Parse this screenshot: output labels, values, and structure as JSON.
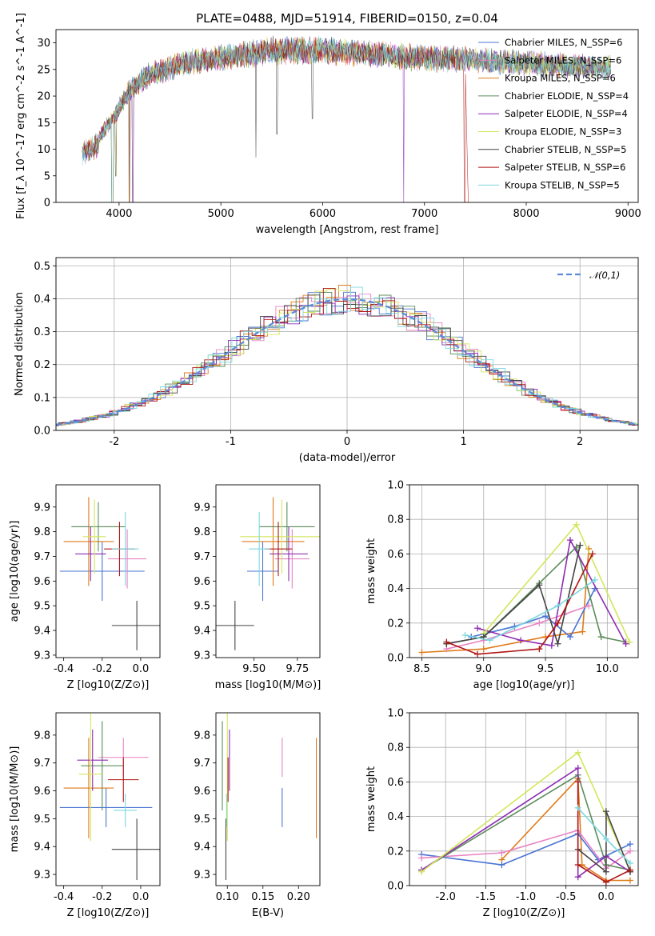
{
  "page": {
    "title": "PLATE=0488, MJD=51914, FIBERID=0150, z=0.04"
  },
  "chart_data": [
    {
      "type": "line",
      "panel": "spectrum",
      "xlabel": "wavelength [Angstrom, rest frame]",
      "ylabel": "Flux [f_λ 10^-17 erg cm^-2 s^-1 A^-1]",
      "xlim": [
        3380,
        9100
      ],
      "ylim": [
        0,
        32.5
      ],
      "xticks": [
        4000,
        5000,
        6000,
        7000,
        8000,
        9000
      ],
      "yticks": [
        0,
        5,
        10,
        15,
        20,
        25,
        30
      ],
      "legend_position": "upper-right",
      "continuum_trend": {
        "x": [
          3640,
          3800,
          3950,
          4100,
          4300,
          4600,
          5000,
          5500,
          6000,
          6500,
          7000,
          7500,
          8000,
          8500,
          8830
        ],
        "y": [
          11,
          12,
          16,
          21,
          24,
          26,
          27.2,
          28.5,
          28.6,
          27.9,
          27.2,
          26.8,
          26.2,
          25.6,
          25.2
        ]
      },
      "series": [
        {
          "name": "Chabrier MILES, N_SSP=6",
          "color": "#4a74d3"
        },
        {
          "name": "Salpeter MILES, N_SSP=6",
          "color": "#e884c4"
        },
        {
          "name": "Kroupa MILES, N_SSP=6",
          "color": "#e07b19"
        },
        {
          "name": "Chabrier ELODIE, N_SSP=4",
          "color": "#5b8c5a"
        },
        {
          "name": "Salpeter ELODIE, N_SSP=4",
          "color": "#8e2cb3"
        },
        {
          "name": "Kroupa ELODIE, N_SSP=3",
          "color": "#d4e65c"
        },
        {
          "name": "Chabrier STELIB, N_SSP=5",
          "color": "#444444"
        },
        {
          "name": "Salpeter STELIB, N_SSP=6",
          "color": "#b01515"
        },
        {
          "name": "Kroupa STELIB, N_SSP=5",
          "color": "#7dd8df"
        }
      ]
    },
    {
      "type": "line",
      "panel": "residual-histogram",
      "xlabel": "(data-model)/error",
      "ylabel": "Normed distribution",
      "xlim": [
        -2.5,
        2.5
      ],
      "ylim": [
        0,
        0.525
      ],
      "xticks": [
        -2,
        -1,
        0,
        1,
        2
      ],
      "yticks": [
        0.0,
        0.1,
        0.2,
        0.3,
        0.4,
        0.5
      ],
      "grid": true,
      "legend_position": "upper-right",
      "reference": {
        "name": "𝒩(0,1)",
        "color": "#5b8bdb",
        "dashed": true
      }
    },
    {
      "type": "scatter",
      "panel": "Z-vs-age",
      "xlabel": "Z [log10(Z/Z⊙)]",
      "ylabel": "age [log10(age/yr)]",
      "xlim": [
        -0.44,
        0.1
      ],
      "ylim": [
        9.29,
        9.99
      ],
      "xticks": [
        -0.4,
        -0.2,
        0.0
      ],
      "yticks": [
        9.3,
        9.4,
        9.5,
        9.6,
        9.7,
        9.8,
        9.9
      ],
      "points": [
        {
          "color": "#4a74d3",
          "x": -0.2,
          "xerr": 0.22,
          "y": 9.64,
          "yerr": 0.12
        },
        {
          "color": "#e884c4",
          "x": -0.07,
          "xerr": 0.1,
          "y": 9.69,
          "yerr": 0.12
        },
        {
          "color": "#e07b19",
          "x": -0.27,
          "xerr": 0.13,
          "y": 9.76,
          "yerr": 0.18
        },
        {
          "color": "#5b8c5a",
          "x": -0.22,
          "xerr": 0.14,
          "y": 9.82,
          "yerr": 0.1
        },
        {
          "color": "#8e2cb3",
          "x": -0.26,
          "xerr": 0.08,
          "y": 9.71,
          "yerr": 0.11
        },
        {
          "color": "#d4e65c",
          "x": -0.24,
          "xerr": 0.06,
          "y": 9.78,
          "yerr": 0.15
        },
        {
          "color": "#444444",
          "x": -0.02,
          "xerr": 0.13,
          "y": 9.42,
          "yerr": 0.1
        },
        {
          "color": "#b01515",
          "x": -0.11,
          "xerr": 0.08,
          "y": 9.73,
          "yerr": 0.11
        },
        {
          "color": "#7dd8df",
          "x": -0.08,
          "xerr": 0.07,
          "y": 9.73,
          "yerr": 0.15
        }
      ]
    },
    {
      "type": "scatter",
      "panel": "mass-vs-age",
      "xlabel": "mass [log10(M/M⊙)]",
      "ylabel": "",
      "xlim": [
        9.28,
        9.88
      ],
      "ylim": [
        9.29,
        9.99
      ],
      "xticks": [
        9.5,
        9.75
      ],
      "yticks": [
        9.3,
        9.4,
        9.5,
        9.6,
        9.7,
        9.8,
        9.9
      ],
      "points": [
        {
          "color": "#4a74d3",
          "x": 9.55,
          "xerr": 0.09,
          "y": 9.64,
          "yerr": 0.12
        },
        {
          "color": "#e884c4",
          "x": 9.72,
          "xerr": 0.1,
          "y": 9.69,
          "yerr": 0.12
        },
        {
          "color": "#e07b19",
          "x": 9.61,
          "xerr": 0.18,
          "y": 9.76,
          "yerr": 0.18
        },
        {
          "color": "#5b8c5a",
          "x": 9.69,
          "xerr": 0.16,
          "y": 9.82,
          "yerr": 0.1
        },
        {
          "color": "#8e2cb3",
          "x": 9.7,
          "xerr": 0.11,
          "y": 9.71,
          "yerr": 0.11
        },
        {
          "color": "#d4e65c",
          "x": 9.66,
          "xerr": 0.24,
          "y": 9.78,
          "yerr": 0.15
        },
        {
          "color": "#444444",
          "x": 9.39,
          "xerr": 0.11,
          "y": 9.42,
          "yerr": 0.1
        },
        {
          "color": "#b01515",
          "x": 9.64,
          "xerr": 0.08,
          "y": 9.73,
          "yerr": 0.11
        },
        {
          "color": "#7dd8df",
          "x": 9.53,
          "xerr": 0.06,
          "y": 9.73,
          "yerr": 0.15
        }
      ]
    },
    {
      "type": "line",
      "panel": "age-vs-massweight",
      "xlabel": "age [log10(age/yr)]",
      "ylabel": "mass weight",
      "xlim": [
        8.4,
        10.25
      ],
      "ylim": [
        0.0,
        1.0
      ],
      "xticks": [
        8.5,
        9.0,
        9.5,
        10.0
      ],
      "yticks": [
        0.0,
        0.2,
        0.4,
        0.6,
        0.8,
        1.0
      ],
      "grid": true,
      "series": [
        {
          "color": "#e07b19",
          "x": [
            8.5,
            9.0,
            9.5,
            9.8,
            9.85
          ],
          "y": [
            0.03,
            0.05,
            0.12,
            0.15,
            0.63
          ]
        },
        {
          "color": "#4a74d3",
          "x": [
            8.9,
            9.25,
            9.5,
            9.7,
            9.9
          ],
          "y": [
            0.12,
            0.18,
            0.24,
            0.12,
            0.4
          ]
        },
        {
          "color": "#e884c4",
          "x": [
            8.7,
            9.0,
            9.45,
            9.65,
            9.85
          ],
          "y": [
            0.05,
            0.1,
            0.2,
            0.25,
            0.3
          ]
        },
        {
          "color": "#5b8c5a",
          "x": [
            8.7,
            9.0,
            9.45,
            9.75,
            9.95,
            10.15
          ],
          "y": [
            0.08,
            0.12,
            0.43,
            0.64,
            0.12,
            0.09
          ]
        },
        {
          "color": "#8e2cb3",
          "x": [
            8.95,
            9.3,
            9.55,
            9.7,
            10.15
          ],
          "y": [
            0.17,
            0.1,
            0.07,
            0.68,
            0.08
          ]
        },
        {
          "color": "#d4e65c",
          "x": [
            9.0,
            9.75,
            10.18
          ],
          "y": [
            0.14,
            0.77,
            0.09
          ]
        },
        {
          "color": "#444444",
          "x": [
            8.7,
            9.0,
            9.45,
            9.6,
            9.78
          ],
          "y": [
            0.08,
            0.12,
            0.42,
            0.08,
            0.65
          ]
        },
        {
          "color": "#b01515",
          "x": [
            8.7,
            8.95,
            9.45,
            9.6,
            9.88
          ],
          "y": [
            0.09,
            0.02,
            0.05,
            0.2,
            0.6
          ]
        },
        {
          "color": "#7dd8df",
          "x": [
            8.85,
            9.05,
            9.6,
            9.9
          ],
          "y": [
            0.13,
            0.1,
            0.3,
            0.45
          ]
        }
      ]
    },
    {
      "type": "scatter",
      "panel": "Z-vs-mass",
      "xlabel": "Z [log10(Z/Z⊙)]",
      "ylabel": "mass [log10(M/M⊙)]",
      "xlim": [
        -0.44,
        0.1
      ],
      "ylim": [
        9.26,
        9.88
      ],
      "xticks": [
        -0.4,
        -0.2,
        0.0
      ],
      "yticks": [
        9.3,
        9.4,
        9.5,
        9.6,
        9.7,
        9.8
      ],
      "points": [
        {
          "color": "#4a74d3",
          "x": -0.18,
          "xerr": 0.24,
          "y": 9.54,
          "yerr": 0.07
        },
        {
          "color": "#e884c4",
          "x": -0.09,
          "xerr": 0.13,
          "y": 9.72,
          "yerr": 0.07
        },
        {
          "color": "#e07b19",
          "x": -0.27,
          "xerr": 0.13,
          "y": 9.61,
          "yerr": 0.18
        },
        {
          "color": "#5b8c5a",
          "x": -0.2,
          "xerr": 0.11,
          "y": 9.69,
          "yerr": 0.16
        },
        {
          "color": "#8e2cb3",
          "x": -0.25,
          "xerr": 0.08,
          "y": 9.71,
          "yerr": 0.11
        },
        {
          "color": "#d4e65c",
          "x": -0.26,
          "xerr": 0.06,
          "y": 9.66,
          "yerr": 0.24
        },
        {
          "color": "#444444",
          "x": -0.02,
          "xerr": 0.13,
          "y": 9.39,
          "yerr": 0.11
        },
        {
          "color": "#b01515",
          "x": -0.09,
          "xerr": 0.08,
          "y": 9.64,
          "yerr": 0.08
        },
        {
          "color": "#7dd8df",
          "x": -0.08,
          "xerr": 0.06,
          "y": 9.53,
          "yerr": 0.06
        }
      ]
    },
    {
      "type": "scatter",
      "panel": "EBV-vs-mass",
      "xlabel": "E(B-V)",
      "ylabel": "",
      "xlim": [
        0.084,
        0.23
      ],
      "ylim": [
        9.26,
        9.88
      ],
      "xticks": [
        0.1,
        0.15,
        0.2
      ],
      "yticks": [
        9.3,
        9.4,
        9.5,
        9.6,
        9.7,
        9.8
      ],
      "points": [
        {
          "color": "#4a74d3",
          "x": 0.177,
          "y": 9.54,
          "yerr": 0.07
        },
        {
          "color": "#e884c4",
          "x": 0.177,
          "y": 9.72,
          "yerr": 0.07
        },
        {
          "color": "#e07b19",
          "x": 0.225,
          "y": 9.61,
          "yerr": 0.18
        },
        {
          "color": "#5b8c5a",
          "x": 0.093,
          "y": 9.69,
          "yerr": 0.16
        },
        {
          "color": "#8e2cb3",
          "x": 0.103,
          "y": 9.71,
          "yerr": 0.11
        },
        {
          "color": "#d4e65c",
          "x": 0.1,
          "y": 9.66,
          "yerr": 0.24
        },
        {
          "color": "#444444",
          "x": 0.098,
          "y": 9.39,
          "yerr": 0.11
        },
        {
          "color": "#b01515",
          "x": 0.101,
          "y": 9.64,
          "yerr": 0.08
        },
        {
          "color": "#7dd8df",
          "x": 0.099,
          "y": 9.53,
          "yerr": 0.06
        }
      ]
    },
    {
      "type": "line",
      "panel": "Z-vs-massweight",
      "xlabel": "Z [log10(Z/Z⊙)]",
      "ylabel": "mass weight",
      "xlim": [
        -2.45,
        0.4
      ],
      "ylim": [
        0.0,
        1.0
      ],
      "xticks": [
        -2.0,
        -1.5,
        -1.0,
        -0.5,
        0.0
      ],
      "yticks": [
        0.0,
        0.2,
        0.4,
        0.6,
        0.8,
        1.0
      ],
      "grid": true,
      "series": [
        {
          "color": "#e07b19",
          "x": [
            -1.3,
            -0.35,
            -0.3,
            0.0,
            0.3
          ],
          "y": [
            0.15,
            0.62,
            0.12,
            0.03,
            0.03
          ]
        },
        {
          "color": "#4a74d3",
          "x": [
            -2.3,
            -1.3,
            -0.35,
            -0.1,
            0.3
          ],
          "y": [
            0.18,
            0.12,
            0.3,
            0.15,
            0.24
          ]
        },
        {
          "color": "#e884c4",
          "x": [
            -2.3,
            -1.3,
            -0.35,
            0.0,
            0.3
          ],
          "y": [
            0.16,
            0.19,
            0.32,
            0.1,
            0.2
          ]
        },
        {
          "color": "#5b8c5a",
          "x": [
            -2.3,
            -0.35,
            0.0,
            0.3
          ],
          "y": [
            0.09,
            0.64,
            0.12,
            0.09
          ]
        },
        {
          "color": "#8e2cb3",
          "x": [
            -2.3,
            -0.35,
            -0.35,
            0.0,
            0.3
          ],
          "y": [
            0.09,
            0.68,
            0.05,
            0.17,
            0.08
          ]
        },
        {
          "color": "#d4e65c",
          "x": [
            -2.3,
            -0.35,
            0.3
          ],
          "y": [
            0.08,
            0.77,
            0.09
          ]
        },
        {
          "color": "#444444",
          "x": [
            -0.35,
            0.0,
            0.0,
            0.3
          ],
          "y": [
            0.21,
            0.08,
            0.43,
            0.08
          ]
        },
        {
          "color": "#b01515",
          "x": [
            -0.35,
            -0.35,
            0.0,
            0.3
          ],
          "y": [
            0.6,
            0.12,
            0.02,
            0.09
          ]
        },
        {
          "color": "#7dd8df",
          "x": [
            -0.35,
            0.0,
            0.3
          ],
          "y": [
            0.45,
            0.27,
            0.13
          ]
        }
      ]
    }
  ]
}
